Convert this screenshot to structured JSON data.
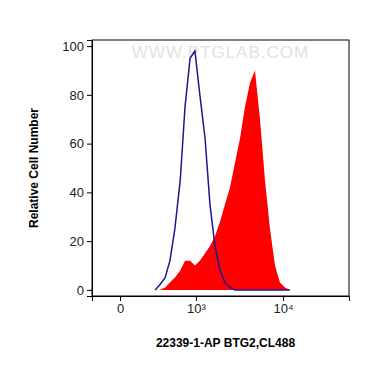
{
  "chart_data": {
    "type": "line",
    "x_label": "22339-1-AP BTG2,CL488",
    "y_label": "Relative Cell Number",
    "annotations": [
      "WWW.PTGLAB.COM"
    ],
    "log": "x",
    "x": [
      250,
      300,
      370,
      440,
      520,
      620,
      720,
      840,
      970,
      1120,
      1300,
      1490,
      1710,
      1960,
      2240,
      2560,
      2920,
      3330,
      3790,
      4320,
      4910,
      5580,
      6340,
      7200,
      8170,
      9260,
      10500,
      11900
    ],
    "series": [
      {
        "type": "area",
        "color": "#ff0000",
        "values": [
          0,
          0,
          1,
          3,
          5,
          8,
          12,
          12,
          10,
          12,
          15,
          18,
          22,
          28,
          35,
          42,
          52,
          62,
          75,
          85,
          90,
          70,
          45,
          25,
          10,
          3,
          1,
          0
        ]
      },
      {
        "type": "line",
        "color": "#1a1a8c",
        "values": [
          0,
          2,
          5,
          12,
          25,
          45,
          75,
          95,
          98,
          80,
          62,
          35,
          18,
          8,
          3,
          1,
          0,
          0,
          0,
          0,
          0,
          0,
          0,
          0,
          0,
          0,
          0,
          0
        ]
      }
    ],
    "xlim": [
      -180,
      52000
    ],
    "xticks": [
      0,
      {
        "value": 1000,
        "label": "10³"
      },
      {
        "value": 10000,
        "label": "10⁴"
      }
    ],
    "ylim": [
      -2.5,
      102.5
    ],
    "yticks": [
      0,
      20,
      40,
      60,
      80,
      100
    ]
  }
}
